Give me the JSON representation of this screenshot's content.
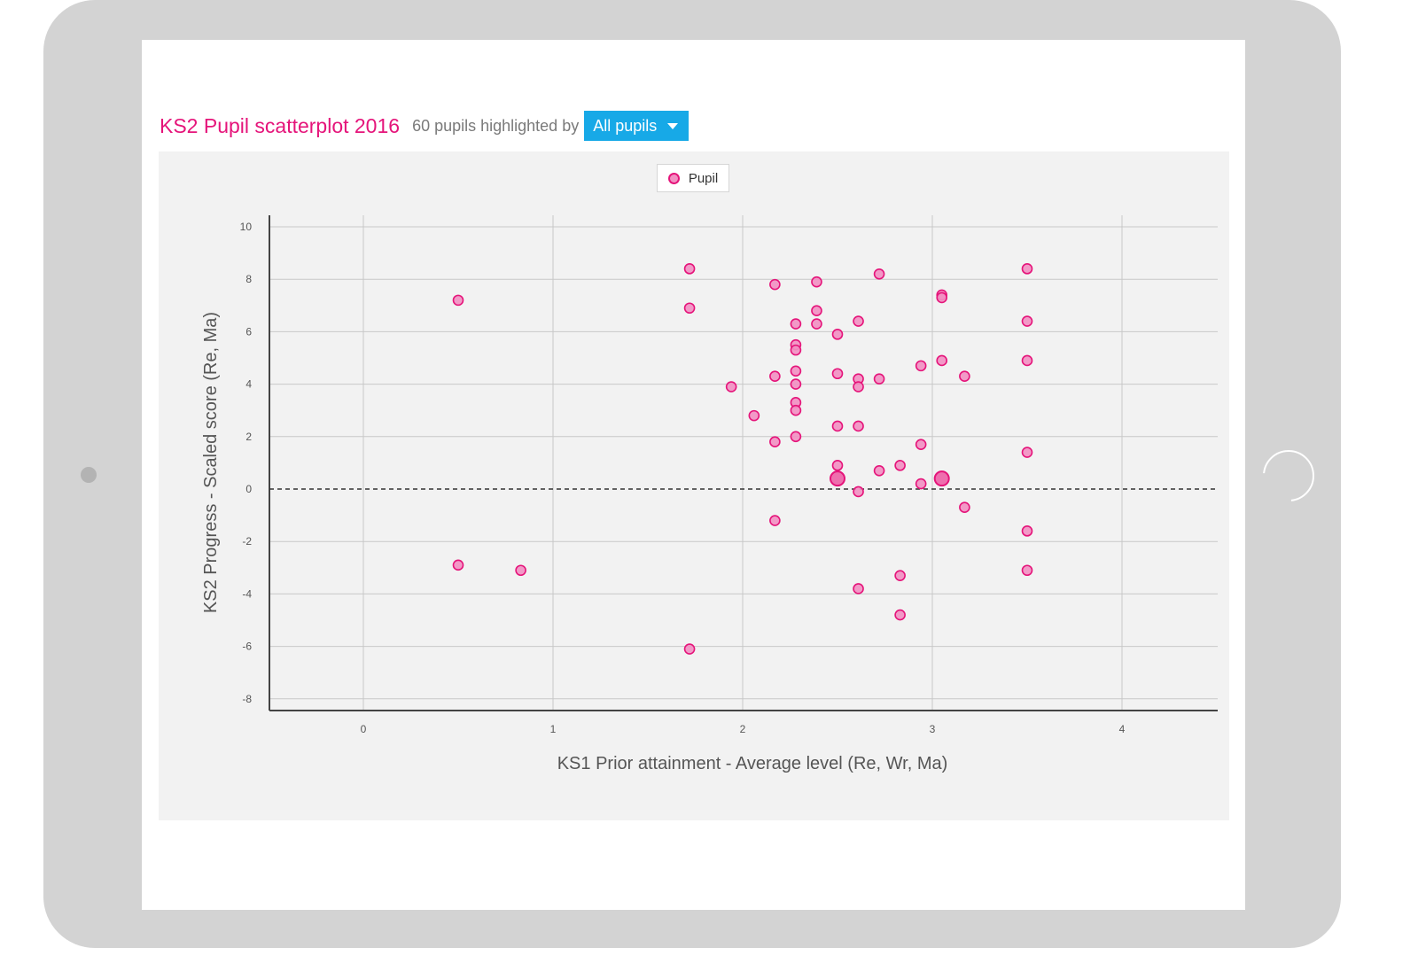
{
  "header": {
    "title": "KS2 Pupil scatterplot 2016",
    "subtitle": "60 pupils highlighted by",
    "filter_value": "All pupils"
  },
  "colors": {
    "accent": "#e5147a",
    "point_fill": "#f28fc2",
    "button": "#17a9e7",
    "panel": "#f2f2f2"
  },
  "icons": {
    "dropdown": "chevron-down-icon"
  },
  "chart_data": {
    "type": "scatter",
    "title": "",
    "xlabel": "KS1 Prior attainment - Average level (Re, Wr, Ma)",
    "ylabel": "KS2 Progress - Scaled score (Re, Ma)",
    "xlim": [
      -0.5,
      4.5
    ],
    "ylim": [
      -8.5,
      10.5
    ],
    "x_ticks": [
      0,
      1,
      2,
      3,
      4
    ],
    "y_ticks": [
      10,
      8,
      6,
      4,
      2,
      0,
      -2,
      -4,
      -6,
      -8
    ],
    "grid": true,
    "reference_line": {
      "y": 0,
      "style": "dashed"
    },
    "legend": {
      "position": "top-center",
      "entries": [
        "Pupil"
      ]
    },
    "series": [
      {
        "name": "Pupil",
        "points": [
          [
            0.5,
            7.2
          ],
          [
            0.5,
            -2.9
          ],
          [
            0.83,
            -3.1
          ],
          [
            1.72,
            8.4
          ],
          [
            1.72,
            6.9
          ],
          [
            1.72,
            -6.1
          ],
          [
            1.94,
            3.9
          ],
          [
            2.06,
            2.8
          ],
          [
            2.17,
            7.8
          ],
          [
            2.17,
            4.3
          ],
          [
            2.17,
            1.8
          ],
          [
            2.17,
            -1.2
          ],
          [
            2.28,
            6.3
          ],
          [
            2.28,
            5.5
          ],
          [
            2.28,
            5.3
          ],
          [
            2.28,
            4.5
          ],
          [
            2.28,
            4.0
          ],
          [
            2.28,
            3.3
          ],
          [
            2.28,
            3.0
          ],
          [
            2.28,
            2.0
          ],
          [
            2.39,
            7.9
          ],
          [
            2.39,
            6.8
          ],
          [
            2.39,
            6.3
          ],
          [
            2.5,
            5.9
          ],
          [
            2.5,
            4.4
          ],
          [
            2.5,
            2.4
          ],
          [
            2.5,
            0.9
          ],
          [
            2.61,
            6.4
          ],
          [
            2.61,
            4.2
          ],
          [
            2.61,
            3.9
          ],
          [
            2.61,
            2.4
          ],
          [
            2.61,
            -0.1
          ],
          [
            2.61,
            -3.8
          ],
          [
            2.72,
            8.2
          ],
          [
            2.72,
            4.2
          ],
          [
            2.72,
            0.7
          ],
          [
            2.83,
            0.9
          ],
          [
            2.83,
            -3.3
          ],
          [
            2.83,
            -4.8
          ],
          [
            2.94,
            4.7
          ],
          [
            2.94,
            1.7
          ],
          [
            2.94,
            0.2
          ],
          [
            3.05,
            7.4
          ],
          [
            3.05,
            7.3
          ],
          [
            3.05,
            4.9
          ],
          [
            3.17,
            4.3
          ],
          [
            3.17,
            -0.7
          ],
          [
            3.5,
            8.4
          ],
          [
            3.5,
            6.4
          ],
          [
            3.5,
            4.9
          ],
          [
            3.5,
            1.4
          ],
          [
            3.5,
            -1.6
          ],
          [
            3.5,
            -3.1
          ]
        ],
        "highlighted_points": [
          [
            2.5,
            0.4
          ],
          [
            3.05,
            0.4
          ]
        ]
      }
    ]
  }
}
